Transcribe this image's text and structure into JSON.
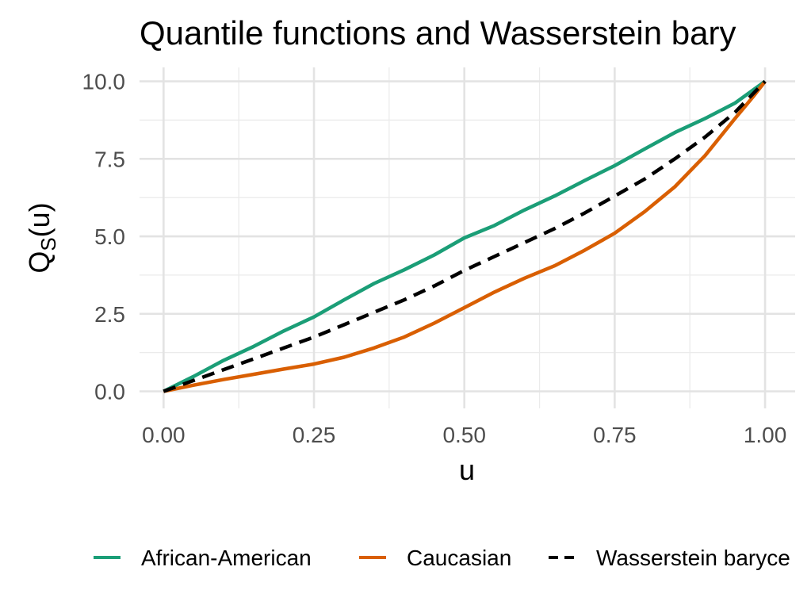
{
  "chart_data": {
    "type": "line",
    "title": "Quantile functions and Wasserstein bary",
    "xlabel": "u",
    "ylabel": "Q",
    "ylabel_subscript": "S",
    "ylabel_suffix": "(u)",
    "xlim": [
      -0.04,
      1.05
    ],
    "ylim": [
      -0.55,
      10.45
    ],
    "grid": true,
    "legend_position": "bottom",
    "x_ticks": [
      0,
      0.25,
      0.5,
      0.75,
      1.0
    ],
    "x_tick_labels": [
      "0.00",
      "0.25",
      "0.50",
      "0.75",
      "1.00"
    ],
    "y_ticks": [
      0,
      2.5,
      5,
      7.5,
      10
    ],
    "y_tick_labels": [
      "0.0",
      "2.5",
      "5.0",
      "7.5",
      "10.0"
    ],
    "x_minor": [
      0.125,
      0.375,
      0.625,
      0.875
    ],
    "y_minor": [
      1.25,
      3.75,
      6.25,
      8.75
    ],
    "series": [
      {
        "name": "African-American",
        "color": "#1b9e77",
        "dash": "solid",
        "x": [
          0,
          0.05,
          0.1,
          0.15,
          0.2,
          0.25,
          0.3,
          0.35,
          0.4,
          0.45,
          0.5,
          0.55,
          0.6,
          0.65,
          0.7,
          0.75,
          0.8,
          0.85,
          0.9,
          0.95,
          1.0
        ],
        "values": [
          0,
          0.48,
          1.0,
          1.45,
          1.95,
          2.4,
          2.95,
          3.48,
          3.92,
          4.4,
          4.95,
          5.35,
          5.85,
          6.3,
          6.8,
          7.28,
          7.82,
          8.35,
          8.8,
          9.3,
          10.0
        ]
      },
      {
        "name": "Caucasian",
        "color": "#d95f02",
        "dash": "solid",
        "x": [
          0,
          0.05,
          0.1,
          0.15,
          0.2,
          0.25,
          0.3,
          0.35,
          0.4,
          0.45,
          0.5,
          0.55,
          0.6,
          0.65,
          0.7,
          0.75,
          0.8,
          0.85,
          0.9,
          0.95,
          0.98,
          1.0
        ],
        "values": [
          0,
          0.2,
          0.38,
          0.55,
          0.72,
          0.88,
          1.1,
          1.4,
          1.75,
          2.2,
          2.7,
          3.2,
          3.65,
          4.05,
          4.55,
          5.1,
          5.8,
          6.6,
          7.6,
          8.8,
          9.5,
          10.0
        ]
      },
      {
        "name": "Wasserstein baryce",
        "color": "#000000",
        "dash": "dashed",
        "x": [
          0,
          0.05,
          0.1,
          0.15,
          0.2,
          0.25,
          0.3,
          0.35,
          0.4,
          0.45,
          0.5,
          0.55,
          0.6,
          0.65,
          0.7,
          0.75,
          0.8,
          0.85,
          0.9,
          0.95,
          1.0
        ],
        "values": [
          0,
          0.35,
          0.7,
          1.05,
          1.4,
          1.75,
          2.15,
          2.55,
          2.95,
          3.4,
          3.9,
          4.35,
          4.8,
          5.25,
          5.75,
          6.3,
          6.85,
          7.5,
          8.2,
          9.0,
          10.0
        ]
      }
    ]
  }
}
